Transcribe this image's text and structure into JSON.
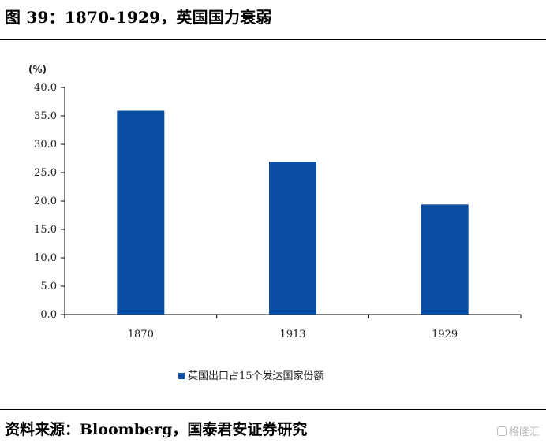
{
  "header": {
    "title": "图 39：1870-1929，英国国力衰弱"
  },
  "footer": {
    "source": "资料来源：Bloomberg，国泰君安证券研究",
    "watermark": "格隆汇"
  },
  "chart_data": {
    "type": "bar",
    "unit_label": "(%)",
    "categories": [
      "1870",
      "1913",
      "1929"
    ],
    "series": [
      {
        "name": "英国出口占15个发达国家份额",
        "values": [
          35.9,
          26.9,
          19.4
        ],
        "color": "#0a4ea3"
      }
    ],
    "ylim": [
      0,
      40
    ],
    "yticks": [
      "0.0",
      "5.0",
      "10.0",
      "15.0",
      "20.0",
      "25.0",
      "30.0",
      "35.0",
      "40.0"
    ],
    "grid": false,
    "legend_position": "bottom"
  }
}
